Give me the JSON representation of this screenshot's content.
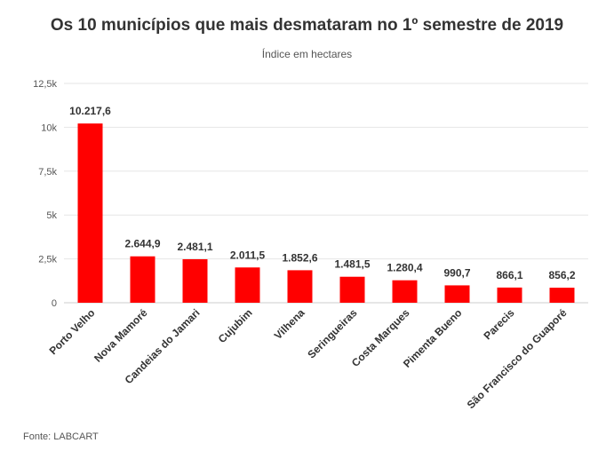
{
  "chart_data": {
    "type": "bar",
    "title": "Os 10 municípios que mais desmataram no 1º semestre de 2019",
    "subtitle": "Índice em hectares",
    "xlabel": "",
    "ylabel": "",
    "categories": [
      "Porto Velho",
      "Nova Mamoré",
      "Candeias do Jamari",
      "Cujubim",
      "Vilhena",
      "Seringueiras",
      "Costa Marques",
      "Pimenta Bueno",
      "Parecis",
      "São Francisco do Guaporé"
    ],
    "values": [
      10217.6,
      2644.9,
      2481.1,
      2011.5,
      1852.6,
      1481.5,
      1280.4,
      990.7,
      866.1,
      856.2
    ],
    "value_labels": [
      "10.217,6",
      "2.644,9",
      "2.481,1",
      "2.011,5",
      "1.852,6",
      "1.481,5",
      "1.280,4",
      "990,7",
      "866,1",
      "856,2"
    ],
    "ylim": [
      0,
      12500
    ],
    "yticks": [
      0,
      2500,
      5000,
      7500,
      10000,
      12500
    ],
    "ytick_labels": [
      "0",
      "2,5k",
      "5k",
      "7,5k",
      "10k",
      "12,5k"
    ],
    "grid": true,
    "legend": "none",
    "bar_color": "#ff0000"
  },
  "source": "Fonte: LABCART"
}
